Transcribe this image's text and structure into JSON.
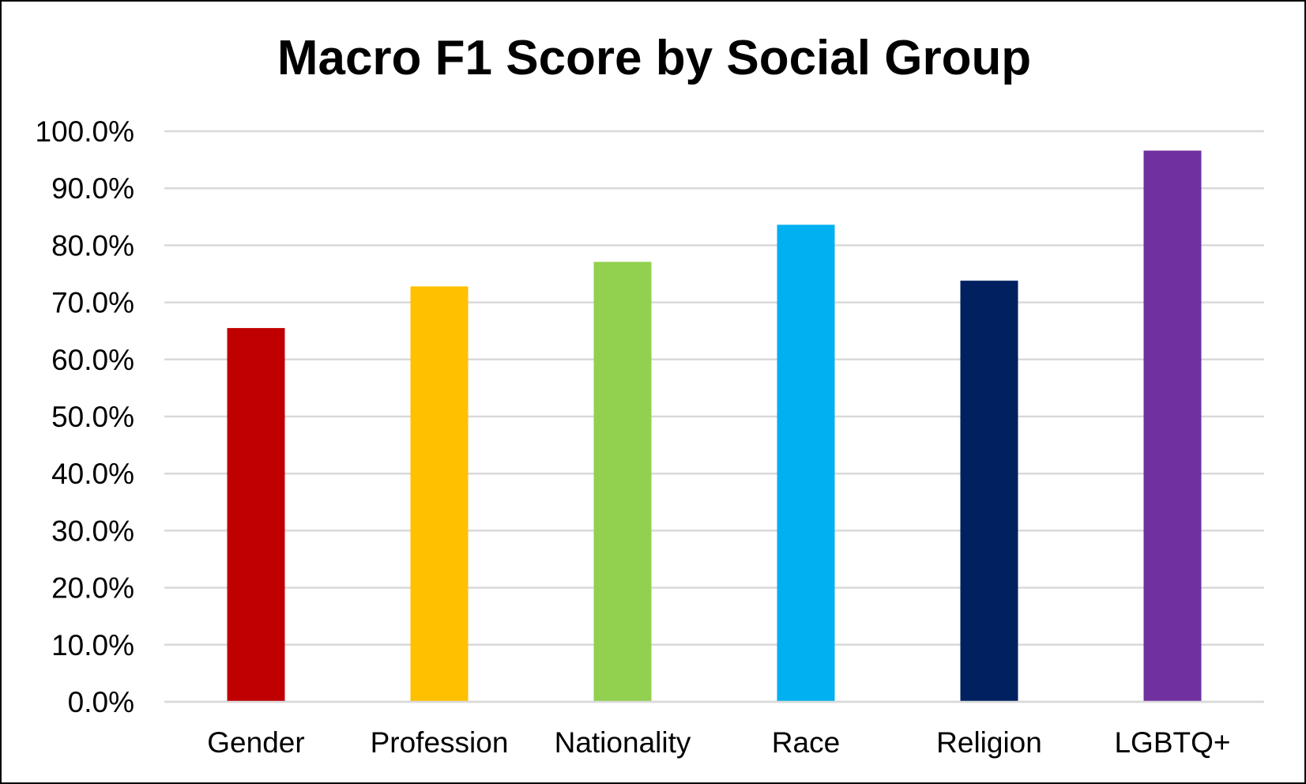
{
  "chart_data": {
    "type": "bar",
    "title": "Macro F1 Score by Social Group",
    "xlabel": "",
    "ylabel": "",
    "categories": [
      "Gender",
      "Profession",
      "Nationality",
      "Race",
      "Religion",
      "LGBTQ+"
    ],
    "values": [
      0.655,
      0.728,
      0.771,
      0.836,
      0.738,
      0.966
    ],
    "colors": [
      "#c00000",
      "#ffc000",
      "#92d050",
      "#00b0f0",
      "#002060",
      "#7030a0"
    ],
    "ylim": [
      0,
      1.0
    ],
    "yticks": [
      0,
      0.1,
      0.2,
      0.3,
      0.4,
      0.5,
      0.6,
      0.7,
      0.8,
      0.9,
      1.0
    ],
    "ytick_labels": [
      "0.0%",
      "10.0%",
      "20.0%",
      "30.0%",
      "40.0%",
      "50.0%",
      "60.0%",
      "70.0%",
      "80.0%",
      "90.0%",
      "100.0%"
    ],
    "grid": true,
    "legend": "none",
    "gridline_color": "#d9d9d9"
  }
}
